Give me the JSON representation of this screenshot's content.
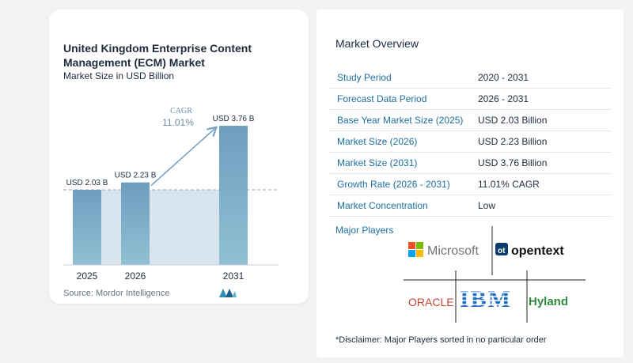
{
  "chart_data": {
    "type": "bar",
    "title": "United Kingdom Enterprise Content Management (ECM) Market",
    "subtitle": "Market Size in USD Billion",
    "categories": [
      "2025",
      "2026",
      "2031"
    ],
    "values": [
      2.03,
      2.23,
      3.76
    ],
    "value_labels": [
      "USD 2.03 B",
      "USD 2.23 B",
      "USD 3.76 B"
    ],
    "cagr_label": "CAGR",
    "cagr_value": "11.01%",
    "ylim": [
      0,
      4.2
    ],
    "grid": false,
    "colors": {
      "bar_top": "#6d9ebf",
      "bar_bottom": "#8fc1d3",
      "band": "#d8e4ee",
      "arrow": "#7aa2c4",
      "reference_line": "#9aa9b8"
    }
  },
  "source_text": "Source: Mordor Intelligence",
  "overview": {
    "title": "Market Overview",
    "rows": [
      {
        "label": "Study Period",
        "value": "2020 - 2031"
      },
      {
        "label": "Forecast Data Period",
        "value": "2026 - 2031"
      },
      {
        "label": "Base Year Market Size (2025)",
        "value": "USD 2.03 Billion"
      },
      {
        "label": "Market Size (2026)",
        "value": "USD 2.23 Billion"
      },
      {
        "label": "Market Size (2031)",
        "value": "USD 3.76 Billion"
      },
      {
        "label": "Growth Rate (2026 - 2031)",
        "value": "11.01% CAGR"
      },
      {
        "label": "Market Concentration",
        "value": "Low"
      }
    ]
  },
  "players": {
    "label": "Major Players",
    "logos": [
      "Microsoft",
      "opentext",
      "ORACLE",
      "IBM",
      "Hyland"
    ]
  },
  "disclaimer": "*Disclaimer: Major Players sorted in no particular order"
}
